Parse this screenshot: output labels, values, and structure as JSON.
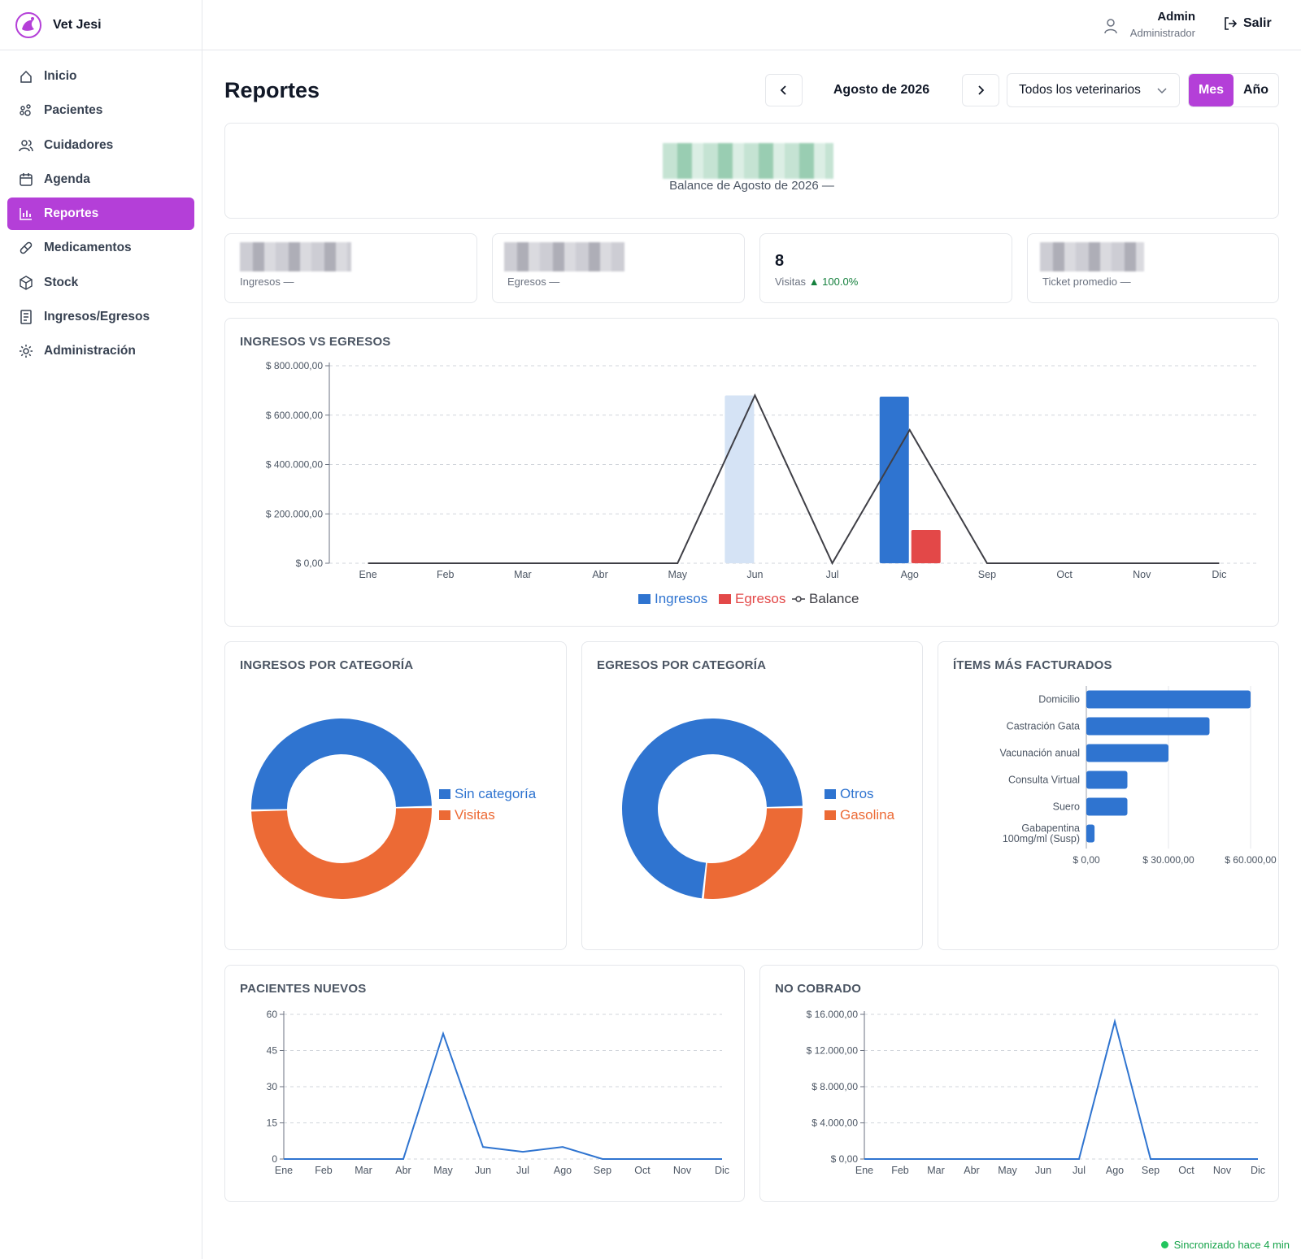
{
  "app": {
    "name": "Vet Jesi"
  },
  "sidebar": {
    "items": [
      {
        "label": "Inicio",
        "icon": "home-icon",
        "active": false
      },
      {
        "label": "Pacientes",
        "icon": "paw-icon",
        "active": false
      },
      {
        "label": "Cuidadores",
        "icon": "users-icon",
        "active": false
      },
      {
        "label": "Agenda",
        "icon": "calendar-icon",
        "active": false
      },
      {
        "label": "Reportes",
        "icon": "bar-chart-icon",
        "active": true
      },
      {
        "label": "Medicamentos",
        "icon": "pill-icon",
        "active": false
      },
      {
        "label": "Stock",
        "icon": "box-icon",
        "active": false
      },
      {
        "label": "Ingresos/Egresos",
        "icon": "receipt-icon",
        "active": false
      },
      {
        "label": "Administración",
        "icon": "gear-icon",
        "active": false
      }
    ]
  },
  "user": {
    "name": "Admin",
    "role": "Administrador",
    "logout_label": "Salir"
  },
  "header": {
    "title": "Reportes",
    "period": "Agosto de 2026",
    "vet_filter": "Todos los veterinarios",
    "mode_month": "Mes",
    "mode_year": "Año"
  },
  "balance": {
    "label": "Balance de Agosto de 2026 —"
  },
  "kpis": {
    "ingresos_label": "Ingresos —",
    "egresos_label": "Egresos —",
    "visitas_value": "8",
    "visitas_label": "Visitas",
    "visitas_delta": "▲ 100.0%",
    "ticket_label": "Ticket promedio —"
  },
  "colors": {
    "accent": "#b43fd8",
    "ingresos": "#2f74d0",
    "egresos": "#e34848",
    "orange": "#ec6a35",
    "balance": "#3f3f46"
  },
  "charts": {
    "ingresos_vs_egresos": {
      "title": "INGRESOS VS EGRESOS",
      "chart_data": {
        "type": "bar",
        "categories": [
          "Ene",
          "Feb",
          "Mar",
          "Abr",
          "May",
          "Jun",
          "Jul",
          "Ago",
          "Sep",
          "Oct",
          "Nov",
          "Dic"
        ],
        "ylim": [
          0,
          800000
        ],
        "yticks": [
          "$ 0,00",
          "$ 200.000,00",
          "$ 400.000,00",
          "$ 600.000,00",
          "$ 800.000,00"
        ],
        "ytick_values": [
          0,
          200000,
          400000,
          600000,
          800000
        ],
        "series": [
          {
            "name": "Ingresos",
            "type": "bar",
            "values": [
              0,
              0,
              0,
              0,
              0,
              680000,
              0,
              675000,
              0,
              0,
              0,
              0
            ],
            "highlight_month": "Ago"
          },
          {
            "name": "Egresos",
            "type": "bar",
            "values": [
              0,
              0,
              0,
              0,
              0,
              0,
              0,
              135000,
              0,
              0,
              0,
              0
            ]
          },
          {
            "name": "Balance",
            "type": "line",
            "values": [
              0,
              0,
              0,
              0,
              0,
              680000,
              0,
              540000,
              0,
              0,
              0,
              0
            ]
          }
        ],
        "legend": [
          "Ingresos",
          "Egresos",
          "Balance"
        ]
      }
    },
    "ingresos_categoria": {
      "title": "INGRESOS POR CATEGORÍA",
      "chart_data": {
        "type": "pie",
        "slices": [
          {
            "name": "Sin categoría",
            "value": 50
          },
          {
            "name": "Visitas",
            "value": 50
          }
        ]
      }
    },
    "egresos_categoria": {
      "title": "EGRESOS POR CATEGORÍA",
      "chart_data": {
        "type": "pie",
        "slices": [
          {
            "name": "Otros",
            "value": 73
          },
          {
            "name": "Gasolina",
            "value": 27
          }
        ]
      }
    },
    "items_facturados": {
      "title": "ÍTEMS MÁS FACTURADOS",
      "chart_data": {
        "type": "bar",
        "orientation": "horizontal",
        "categories": [
          "Domicilio",
          "Castración Gata",
          "Vacunación anual",
          "Consulta Virtual",
          "Suero",
          "Gabapentina 100mg/ml (Susp)"
        ],
        "values": [
          60000,
          45000,
          30000,
          15000,
          15000,
          3000
        ],
        "xlim": [
          0,
          60000
        ],
        "xticks": [
          "$ 0,00",
          "$ 30.000,00",
          "$ 60.000,00"
        ],
        "xtick_values": [
          0,
          30000,
          60000
        ]
      }
    },
    "pacientes_nuevos": {
      "title": "PACIENTES NUEVOS",
      "chart_data": {
        "type": "line",
        "categories": [
          "Ene",
          "Feb",
          "Mar",
          "Abr",
          "May",
          "Jun",
          "Jul",
          "Ago",
          "Sep",
          "Oct",
          "Nov",
          "Dic"
        ],
        "values": [
          0,
          0,
          0,
          0,
          52,
          5,
          3,
          5,
          0,
          0,
          0,
          0
        ],
        "ylim": [
          0,
          60
        ],
        "yticks": [
          "0",
          "15",
          "30",
          "45",
          "60"
        ],
        "ytick_values": [
          0,
          15,
          30,
          45,
          60
        ]
      }
    },
    "no_cobrado": {
      "title": "NO COBRADO",
      "chart_data": {
        "type": "line",
        "categories": [
          "Ene",
          "Feb",
          "Mar",
          "Abr",
          "May",
          "Jun",
          "Jul",
          "Ago",
          "Sep",
          "Oct",
          "Nov",
          "Dic"
        ],
        "values": [
          0,
          0,
          0,
          0,
          0,
          0,
          0,
          15200,
          0,
          0,
          0,
          0
        ],
        "ylim": [
          0,
          16000
        ],
        "yticks": [
          "$ 0,00",
          "$ 4.000,00",
          "$ 8.000,00",
          "$ 12.000,00",
          "$ 16.000,00"
        ],
        "ytick_values": [
          0,
          4000,
          8000,
          12000,
          16000
        ]
      }
    }
  },
  "footer": {
    "sync": "Sincronizado hace 4 min"
  }
}
